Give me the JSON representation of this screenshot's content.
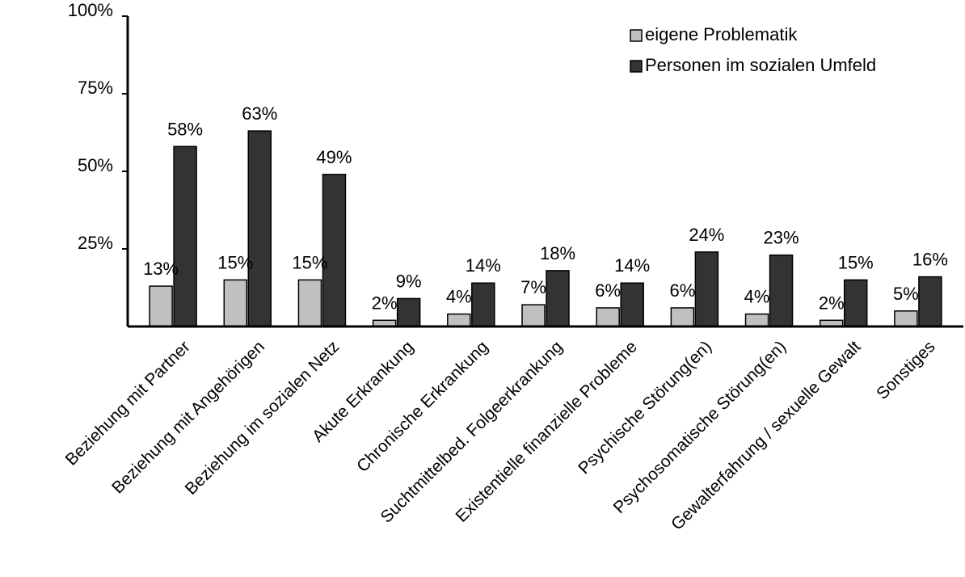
{
  "chart_data": {
    "type": "bar",
    "categories": [
      "Beziehung mit Partner",
      "Beziehung mit Angehörigen",
      "Beziehung im sozialen Netz",
      "Akute Erkrankung",
      "Chronische Erkrankung",
      "Suchtmittelbed. Folgeerkrankung",
      "Existentielle finanzielle Probleme",
      "Psychische Störung(en)",
      "Psychosomatische Störung(en)",
      "Gewalterfahrung / sexuelle Gewalt",
      "Sonstiges"
    ],
    "series": [
      {
        "name": "eigene Problematik",
        "color": "#c0c0c0",
        "values": [
          13,
          15,
          15,
          2,
          4,
          7,
          6,
          6,
          4,
          2,
          5
        ],
        "labels": [
          "13%",
          "15%",
          "15%",
          "2%",
          "4%",
          "7%",
          "6%",
          "6%",
          "4%",
          "2%",
          "5%"
        ]
      },
      {
        "name": "Personen im sozialen Umfeld",
        "color": "#333333",
        "values": [
          58,
          63,
          49,
          9,
          14,
          18,
          14,
          24,
          23,
          15,
          16
        ],
        "labels": [
          "58%",
          "63%",
          "49%",
          "9%",
          "14%",
          "18%",
          "14%",
          "24%",
          "23%",
          "15%",
          "16%"
        ]
      }
    ],
    "ylim": [
      0,
      100
    ],
    "yticks": [
      25,
      50,
      75,
      100
    ],
    "ytick_labels": [
      "25%",
      "50%",
      "75%",
      "100%"
    ],
    "title": "",
    "xlabel": "",
    "ylabel": "",
    "grid": false,
    "legend_position": "top-right",
    "category_label_rotation": -45
  }
}
